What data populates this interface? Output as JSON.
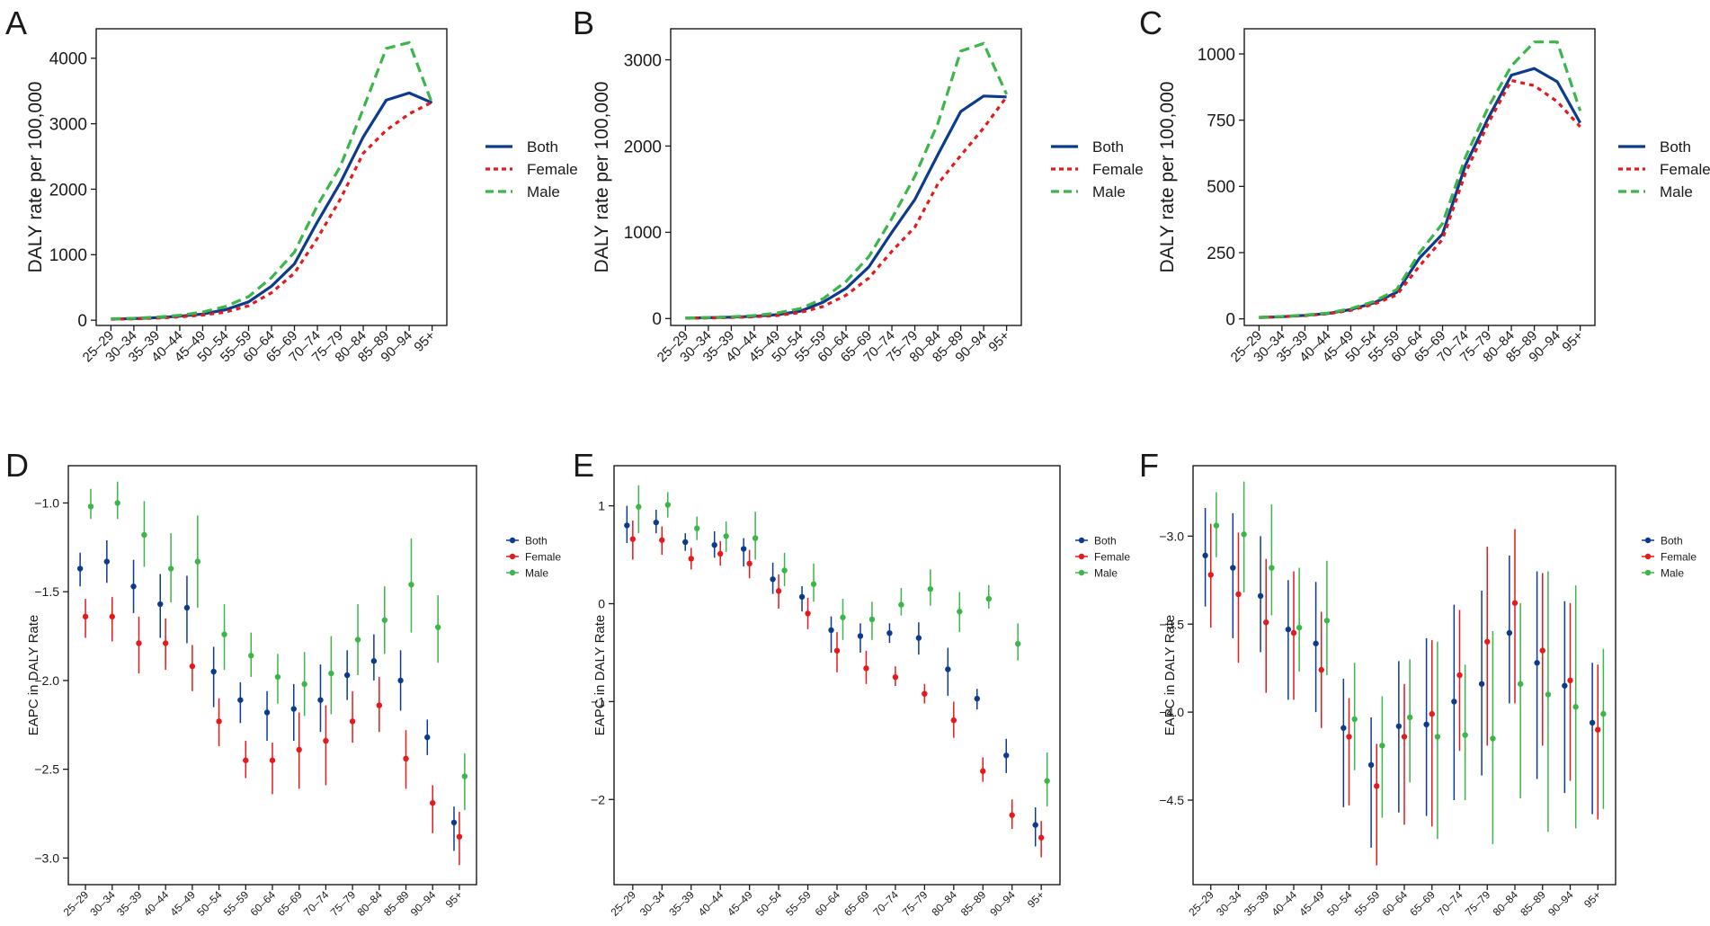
{
  "age_groups": [
    "25–29",
    "30–34",
    "35–39",
    "40–44",
    "45–49",
    "50–54",
    "55–59",
    "60–64",
    "65–69",
    "70–74",
    "75–79",
    "80–84",
    "85–89",
    "90–94",
    "95+"
  ],
  "colors": {
    "Both": "#0d3b8c",
    "Female": "#e41a1c",
    "Male": "#3cb54a"
  },
  "chart_data": [
    {
      "panel": "A",
      "type": "line",
      "ylabel": "DALY rate per 100,000",
      "xlabel": "",
      "ylim": [
        -80,
        4450
      ],
      "yticks": [
        0,
        1000,
        2000,
        3000,
        4000
      ],
      "legend": [
        "Both",
        "Female",
        "Male"
      ],
      "legend_position": "right",
      "series": [
        {
          "name": "Both",
          "values": [
            18,
            25,
            40,
            62,
            95,
            160,
            280,
            520,
            860,
            1500,
            2100,
            2800,
            3360,
            3470,
            3320
          ]
        },
        {
          "name": "Female",
          "values": [
            15,
            20,
            32,
            50,
            78,
            125,
            220,
            420,
            720,
            1250,
            1850,
            2550,
            2900,
            3150,
            3330
          ]
        },
        {
          "name": "Male",
          "values": [
            22,
            30,
            48,
            75,
            125,
            210,
            360,
            650,
            1040,
            1750,
            2350,
            3230,
            4150,
            4240,
            3310
          ]
        }
      ]
    },
    {
      "panel": "B",
      "type": "line",
      "ylabel": "DALY rate per 100,000",
      "xlabel": "",
      "ylim": [
        -80,
        3360
      ],
      "yticks": [
        0,
        1000,
        2000,
        3000
      ],
      "legend": [
        "Both",
        "Female",
        "Male"
      ],
      "legend_position": "right",
      "series": [
        {
          "name": "Both",
          "values": [
            6,
            10,
            16,
            26,
            45,
            85,
            190,
            350,
            600,
            1000,
            1380,
            1900,
            2400,
            2580,
            2570
          ]
        },
        {
          "name": "Female",
          "values": [
            4,
            7,
            12,
            20,
            35,
            70,
            140,
            270,
            470,
            780,
            1060,
            1560,
            1890,
            2210,
            2570
          ]
        },
        {
          "name": "Male",
          "values": [
            8,
            12,
            20,
            35,
            65,
            115,
            230,
            430,
            720,
            1160,
            1650,
            2260,
            3100,
            3190,
            2600
          ]
        }
      ]
    },
    {
      "panel": "C",
      "type": "line",
      "ylabel": "DALY rate per 100,000",
      "xlabel": "",
      "ylim": [
        -25,
        1095
      ],
      "yticks": [
        0,
        250,
        500,
        750,
        1000
      ],
      "legend": [
        "Both",
        "Female",
        "Male"
      ],
      "legend_position": "right",
      "series": [
        {
          "name": "Both",
          "values": [
            5,
            8,
            13,
            20,
            35,
            60,
            100,
            230,
            320,
            580,
            760,
            920,
            945,
            895,
            740
          ]
        },
        {
          "name": "Female",
          "values": [
            5,
            8,
            12,
            19,
            32,
            55,
            90,
            200,
            300,
            550,
            740,
            900,
            880,
            820,
            725
          ]
        },
        {
          "name": "Male",
          "values": [
            6,
            9,
            14,
            22,
            38,
            65,
            110,
            250,
            360,
            610,
            800,
            955,
            1045,
            1045,
            785
          ]
        }
      ]
    },
    {
      "panel": "D",
      "type": "errorbar",
      "ylabel": "EAPC in DALY Rate",
      "xlabel": "",
      "ylim": [
        -3.15,
        -0.79
      ],
      "yticks": [
        -3.0,
        -2.5,
        -2.0,
        -1.5,
        -1.0
      ],
      "ytick_labels": [
        "−3.0",
        "−2.5",
        "−2.0",
        "−1.5",
        "−1.0"
      ],
      "legend": [
        "Both",
        "Female",
        "Male"
      ],
      "legend_position": "right",
      "series": [
        {
          "name": "Both",
          "values": [
            -1.37,
            -1.33,
            -1.47,
            -1.57,
            -1.59,
            -1.95,
            -2.11,
            -2.18,
            -2.16,
            -2.11,
            -1.97,
            -1.89,
            -2.0,
            -2.32,
            -2.8
          ],
          "lower": [
            -1.47,
            -1.45,
            -1.62,
            -1.76,
            -1.79,
            -2.15,
            -2.24,
            -2.34,
            -2.34,
            -2.29,
            -2.11,
            -2.0,
            -2.17,
            -2.42,
            -2.96
          ],
          "upper": [
            -1.28,
            -1.21,
            -1.32,
            -1.4,
            -1.41,
            -1.81,
            -2.01,
            -2.06,
            -2.02,
            -1.91,
            -1.83,
            -1.74,
            -1.83,
            -2.22,
            -2.71
          ]
        },
        {
          "name": "Female",
          "values": [
            -1.64,
            -1.64,
            -1.79,
            -1.79,
            -1.92,
            -2.23,
            -2.45,
            -2.45,
            -2.39,
            -2.34,
            -2.23,
            -2.14,
            -2.44,
            -2.69,
            -2.88
          ],
          "lower": [
            -1.76,
            -1.78,
            -1.96,
            -1.94,
            -2.06,
            -2.37,
            -2.55,
            -2.64,
            -2.61,
            -2.59,
            -2.35,
            -2.29,
            -2.61,
            -2.86,
            -3.04
          ],
          "upper": [
            -1.54,
            -1.53,
            -1.64,
            -1.65,
            -1.8,
            -2.1,
            -2.34,
            -2.35,
            -2.18,
            -2.14,
            -2.06,
            -1.98,
            -2.28,
            -2.59,
            -2.74
          ]
        },
        {
          "name": "Male",
          "values": [
            -1.02,
            -1.0,
            -1.18,
            -1.37,
            -1.33,
            -1.74,
            -1.86,
            -1.98,
            -2.02,
            -1.96,
            -1.77,
            -1.66,
            -1.46,
            -1.7,
            -2.54
          ],
          "lower": [
            -1.09,
            -1.09,
            -1.36,
            -1.56,
            -1.59,
            -1.94,
            -1.98,
            -2.13,
            -2.2,
            -2.19,
            -1.97,
            -1.85,
            -1.73,
            -1.9,
            -2.73
          ],
          "upper": [
            -0.92,
            -0.88,
            -0.99,
            -1.17,
            -1.07,
            -1.57,
            -1.73,
            -1.85,
            -1.84,
            -1.75,
            -1.57,
            -1.47,
            -1.2,
            -1.52,
            -2.41
          ]
        }
      ]
    },
    {
      "panel": "E",
      "type": "errorbar",
      "ylabel": "EAPC in DALY Rate",
      "xlabel": "",
      "ylim": [
        -2.87,
        1.41
      ],
      "yticks": [
        -2,
        -1,
        0,
        1
      ],
      "ytick_labels": [
        "−2",
        "−1",
        "0",
        "1"
      ],
      "legend": [
        "Both",
        "Female",
        "Male"
      ],
      "legend_position": "right",
      "series": [
        {
          "name": "Both",
          "values": [
            0.8,
            0.83,
            0.63,
            0.6,
            0.56,
            0.25,
            0.07,
            -0.27,
            -0.33,
            -0.3,
            -0.35,
            -0.67,
            -0.97,
            -1.55,
            -2.26
          ],
          "lower": [
            0.62,
            0.72,
            0.54,
            0.47,
            0.38,
            0.1,
            -0.08,
            -0.5,
            -0.5,
            -0.4,
            -0.52,
            -0.94,
            -1.08,
            -1.73,
            -2.48
          ],
          "upper": [
            1.0,
            0.96,
            0.72,
            0.74,
            0.67,
            0.42,
            0.18,
            -0.13,
            -0.2,
            -0.2,
            -0.19,
            -0.45,
            -0.87,
            -1.38,
            -2.08
          ]
        },
        {
          "name": "Female",
          "values": [
            0.66,
            0.65,
            0.46,
            0.51,
            0.41,
            0.13,
            -0.1,
            -0.48,
            -0.66,
            -0.75,
            -0.92,
            -1.19,
            -1.71,
            -2.16,
            -2.39
          ],
          "lower": [
            0.45,
            0.5,
            0.35,
            0.39,
            0.26,
            -0.05,
            -0.26,
            -0.7,
            -0.82,
            -0.84,
            -1.02,
            -1.37,
            -1.82,
            -2.3,
            -2.59
          ],
          "upper": [
            0.85,
            0.79,
            0.57,
            0.64,
            0.55,
            0.3,
            0.06,
            -0.29,
            -0.48,
            -0.64,
            -0.82,
            -1.0,
            -1.57,
            -2.0,
            -2.22
          ]
        },
        {
          "name": "Male",
          "values": [
            0.99,
            1.01,
            0.77,
            0.69,
            0.67,
            0.34,
            0.2,
            -0.14,
            -0.16,
            -0.01,
            0.15,
            -0.08,
            0.05,
            -0.41,
            -1.81
          ],
          "lower": [
            0.72,
            0.88,
            0.65,
            0.53,
            0.45,
            0.18,
            0.02,
            -0.37,
            -0.37,
            -0.12,
            -0.02,
            -0.29,
            -0.05,
            -0.58,
            -2.07
          ],
          "upper": [
            1.21,
            1.14,
            0.89,
            0.84,
            0.94,
            0.52,
            0.41,
            0.05,
            0.02,
            0.16,
            0.35,
            0.12,
            0.19,
            -0.2,
            -1.52
          ]
        }
      ]
    },
    {
      "panel": "F",
      "type": "errorbar",
      "ylabel": "EAPC in DALY Rate",
      "xlabel": "",
      "ylim": [
        -4.98,
        -2.6
      ],
      "yticks": [
        -4.5,
        -4.0,
        -3.5,
        -3.0
      ],
      "ytick_labels": [
        "−4.5",
        "−4.0",
        "−3.5",
        "−3.0"
      ],
      "legend": [
        "Both",
        "Female",
        "Male"
      ],
      "legend_position": "right",
      "series": [
        {
          "name": "Both",
          "values": [
            -3.11,
            -3.18,
            -3.34,
            -3.53,
            -3.61,
            -4.09,
            -4.3,
            -4.08,
            -4.07,
            -3.94,
            -3.84,
            -3.55,
            -3.72,
            -3.85,
            -4.06
          ],
          "lower": [
            -3.4,
            -3.58,
            -3.66,
            -3.93,
            -4.0,
            -4.54,
            -4.77,
            -4.57,
            -4.59,
            -4.5,
            -4.36,
            -3.95,
            -4.38,
            -4.46,
            -4.58
          ],
          "upper": [
            -2.84,
            -2.87,
            -3.0,
            -3.25,
            -3.26,
            -3.81,
            -4.03,
            -3.71,
            -3.58,
            -3.39,
            -3.31,
            -3.11,
            -3.2,
            -3.37,
            -3.72
          ]
        },
        {
          "name": "Female",
          "values": [
            -3.22,
            -3.33,
            -3.49,
            -3.55,
            -3.76,
            -4.14,
            -4.42,
            -4.14,
            -4.01,
            -3.79,
            -3.6,
            -3.38,
            -3.65,
            -3.82,
            -4.1
          ],
          "lower": [
            -3.52,
            -3.72,
            -3.89,
            -3.93,
            -4.09,
            -4.53,
            -4.87,
            -4.64,
            -4.65,
            -4.22,
            -4.19,
            -3.95,
            -4.19,
            -4.39,
            -4.61
          ],
          "upper": [
            -2.93,
            -2.98,
            -3.13,
            -3.2,
            -3.43,
            -3.92,
            -4.18,
            -3.84,
            -3.59,
            -3.42,
            -3.06,
            -2.96,
            -3.21,
            -3.38,
            -3.73
          ]
        },
        {
          "name": "Male",
          "values": [
            -2.94,
            -2.99,
            -3.18,
            -3.52,
            -3.48,
            -4.04,
            -4.19,
            -4.03,
            -4.14,
            -4.13,
            -4.15,
            -3.84,
            -3.9,
            -3.97,
            -4.01
          ],
          "lower": [
            -3.12,
            -3.32,
            -3.45,
            -3.77,
            -3.79,
            -4.33,
            -4.6,
            -4.4,
            -4.72,
            -4.5,
            -4.75,
            -4.49,
            -4.68,
            -4.66,
            -4.55
          ],
          "upper": [
            -2.75,
            -2.69,
            -2.82,
            -3.18,
            -3.14,
            -3.72,
            -3.91,
            -3.7,
            -3.6,
            -3.73,
            -3.54,
            -3.38,
            -3.2,
            -3.28,
            -3.64
          ]
        }
      ]
    }
  ]
}
